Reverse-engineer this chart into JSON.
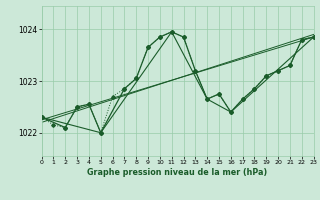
{
  "title": "Graphe pression niveau de la mer (hPa)",
  "background_color": "#cce8d8",
  "grid_color": "#99ccaa",
  "line_color": "#1a5c2a",
  "xlim": [
    0,
    23
  ],
  "ylim": [
    1021.55,
    1024.45
  ],
  "yticks": [
    1022,
    1023,
    1024
  ],
  "xticks": [
    0,
    1,
    2,
    3,
    4,
    5,
    6,
    7,
    8,
    9,
    10,
    11,
    12,
    13,
    14,
    15,
    16,
    17,
    18,
    19,
    20,
    21,
    22,
    23
  ],
  "series1_x": [
    0,
    1,
    2,
    3,
    4,
    5,
    6,
    7,
    8,
    9,
    10,
    11,
    12,
    13,
    14,
    15,
    16,
    17,
    18,
    19,
    20,
    21,
    22,
    23
  ],
  "series1_y": [
    1022.3,
    1022.15,
    1022.1,
    1022.5,
    1022.55,
    1022.0,
    1022.7,
    1022.85,
    1023.05,
    1023.65,
    1023.85,
    1023.95,
    1023.85,
    1023.2,
    1022.65,
    1022.75,
    1022.4,
    1022.65,
    1022.85,
    1023.1,
    1023.2,
    1023.3,
    1023.8,
    1023.85
  ],
  "series2_x": [
    0,
    2,
    3,
    4,
    5,
    7,
    8,
    9,
    10,
    11,
    12,
    13,
    14,
    15,
    16,
    17,
    18,
    19,
    20,
    21,
    22,
    23
  ],
  "series2_y": [
    1022.3,
    1022.1,
    1022.5,
    1022.55,
    1022.0,
    1022.85,
    1023.05,
    1023.65,
    1023.85,
    1023.95,
    1023.85,
    1023.2,
    1022.65,
    1022.75,
    1022.4,
    1022.65,
    1022.85,
    1023.1,
    1023.2,
    1023.3,
    1023.8,
    1023.85
  ],
  "envelope_x": [
    0,
    5,
    11,
    14,
    16,
    23
  ],
  "envelope_y": [
    1022.3,
    1022.0,
    1023.95,
    1022.65,
    1022.4,
    1023.85
  ],
  "trend1_x": [
    0,
    23
  ],
  "trend1_y": [
    1022.25,
    1023.85
  ],
  "trend2_x": [
    0,
    23
  ],
  "trend2_y": [
    1022.2,
    1023.9
  ]
}
